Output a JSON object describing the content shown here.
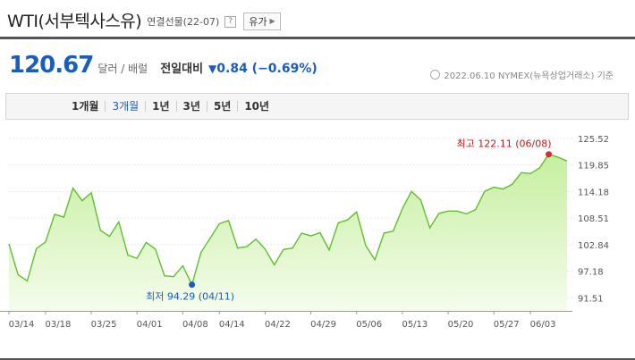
{
  "header": {
    "title": "WTI(서부텍사스유)",
    "subtitle": "연결선물(22-07)",
    "help": "?",
    "oil_button": "유가"
  },
  "quote": {
    "price": "120.67",
    "unit": "달러 / 배럴",
    "change_label": "전일대비",
    "change_arrow": "▼",
    "change_text": "0.84 (−0.69%)",
    "source": "2022.06.10  NYMEX(뉴욕상업거래소) 기준"
  },
  "tabs": [
    "1개월",
    "3개월",
    "1년",
    "3년",
    "5년",
    "10년"
  ],
  "active_tab": 1,
  "chart_data": {
    "type": "area",
    "title": "",
    "xlabel": "",
    "ylabel": "",
    "y_ticks": [
      "125.52",
      "119.85",
      "114.18",
      "108.51",
      "102.84",
      "97.18",
      "91.51"
    ],
    "ylim": [
      88.7,
      128.35
    ],
    "x_ticks": [
      "03/14",
      "03/18",
      "03/25",
      "04/01",
      "04/08",
      "04/14",
      "04/22",
      "04/29",
      "05/06",
      "05/13",
      "05/20",
      "05/27",
      "06/03"
    ],
    "x_tick_index": [
      0,
      4,
      9,
      14,
      19,
      23,
      28,
      33,
      38,
      43,
      48,
      53,
      57
    ],
    "values": [
      103.0,
      96.4,
      95.1,
      102.0,
      103.4,
      109.3,
      108.7,
      114.9,
      112.2,
      113.9,
      105.9,
      104.6,
      107.7,
      100.6,
      99.9,
      103.3,
      101.9,
      96.2,
      96.0,
      98.3,
      94.29,
      101.2,
      104.2,
      107.3,
      108.0,
      102.1,
      102.4,
      104.0,
      101.9,
      98.5,
      101.8,
      102.1,
      105.3,
      104.7,
      105.4,
      101.7,
      107.5,
      108.1,
      109.8,
      102.6,
      99.6,
      105.3,
      105.7,
      110.5,
      114.2,
      112.4,
      106.4,
      109.5,
      110.0,
      110.0,
      109.4,
      110.3,
      114.2,
      115.1,
      114.7,
      115.7,
      118.2,
      118.0,
      119.2,
      122.11,
      121.5,
      120.67
    ],
    "high": {
      "label": "최고 122.11 (06/08)",
      "value": 122.11,
      "date": "06/08",
      "index": 59
    },
    "low": {
      "label": "최저 94.29 (04/11)",
      "value": 94.29,
      "date": "04/11",
      "index": 20
    },
    "colors": {
      "line": "#5fbf2f",
      "fill_top": "#c6ef9f",
      "fill_bottom": "#f4fcec",
      "high": "#e0282e",
      "low": "#1a5dbd"
    }
  }
}
